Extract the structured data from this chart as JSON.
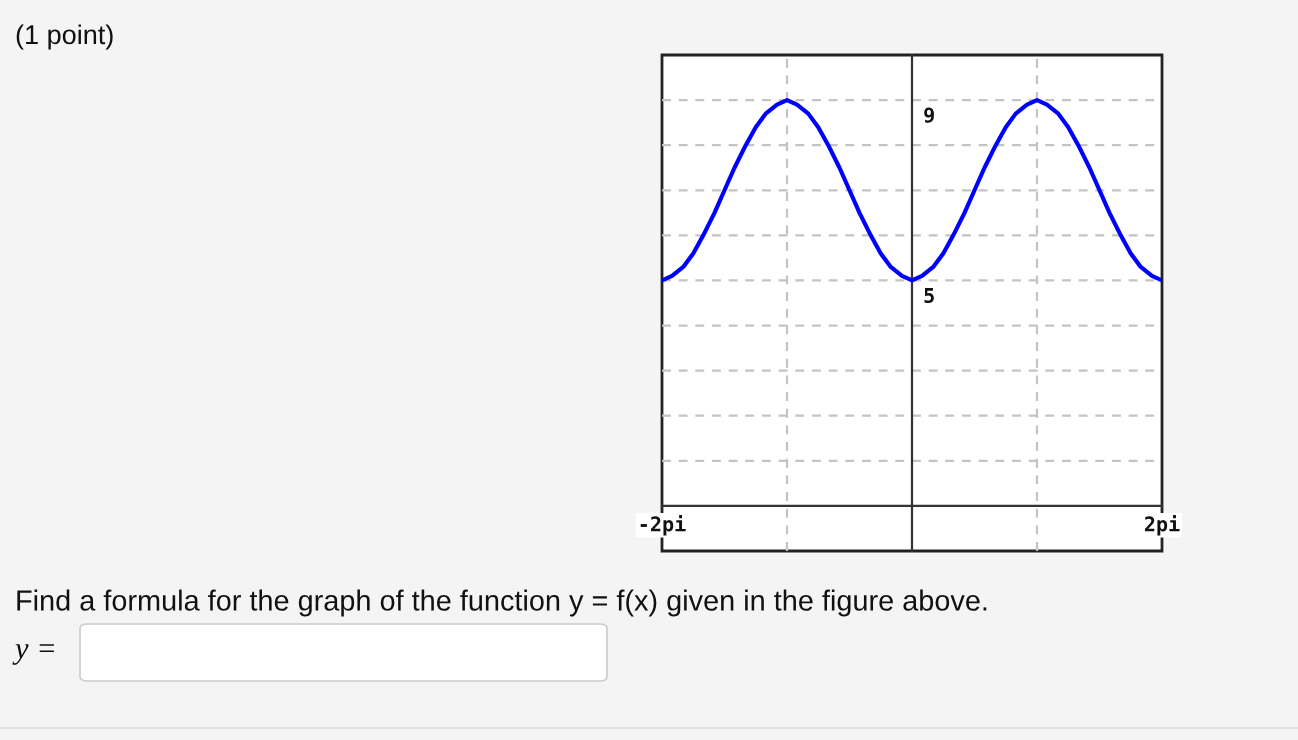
{
  "chart_data": {
    "type": "line",
    "title": "(1 point)",
    "annotations": [
      "Find a formula for the graph of the function y = f(x) given in the figure above.",
      "y ="
    ],
    "x": [
      -2,
      -1.92,
      -1.83,
      -1.75,
      -1.67,
      -1.58,
      -1.5,
      -1.42,
      -1.33,
      -1.25,
      -1.17,
      -1.08,
      -1,
      -0.92,
      -0.83,
      -0.75,
      -0.67,
      -0.58,
      -0.5,
      -0.42,
      -0.33,
      -0.25,
      -0.17,
      -0.08,
      0,
      0.08,
      0.17,
      0.25,
      0.33,
      0.42,
      0.5,
      0.58,
      0.67,
      0.75,
      0.83,
      0.92,
      1,
      1.08,
      1.17,
      1.25,
      1.33,
      1.42,
      1.5,
      1.58,
      1.67,
      1.75,
      1.83,
      1.92,
      2
    ],
    "series": [
      {
        "color": "#0000ff",
        "values": [
          5,
          5.1,
          5.3,
          5.6,
          6,
          6.5,
          7,
          7.5,
          8,
          8.4,
          8.7,
          8.9,
          9,
          8.9,
          8.7,
          8.4,
          8,
          7.5,
          7,
          6.5,
          6,
          5.6,
          5.3,
          5.1,
          5,
          5.1,
          5.3,
          5.6,
          6,
          6.5,
          7,
          7.5,
          8,
          8.4,
          8.7,
          8.9,
          9,
          8.9,
          8.7,
          8.4,
          8,
          7.5,
          7,
          6.5,
          6,
          5.6,
          5.3,
          5.1,
          5
        ]
      }
    ],
    "xlim": [
      -2,
      2
    ],
    "ylim": [
      -1,
      10
    ],
    "xticks": [
      {
        "value": -2,
        "label": "-2pi"
      },
      {
        "value": -1,
        "label": null
      },
      {
        "value": 1,
        "label": null
      },
      {
        "value": 2,
        "label": "2pi"
      }
    ],
    "yticks": [
      {
        "value": 1,
        "label": null
      },
      {
        "value": 2,
        "label": null
      },
      {
        "value": 3,
        "label": null
      },
      {
        "value": 4,
        "label": null
      },
      5,
      {
        "value": 6,
        "label": null
      },
      {
        "value": 7,
        "label": null
      },
      {
        "value": 8,
        "label": null
      },
      9
    ],
    "grid": true,
    "line_style": "solid"
  }
}
